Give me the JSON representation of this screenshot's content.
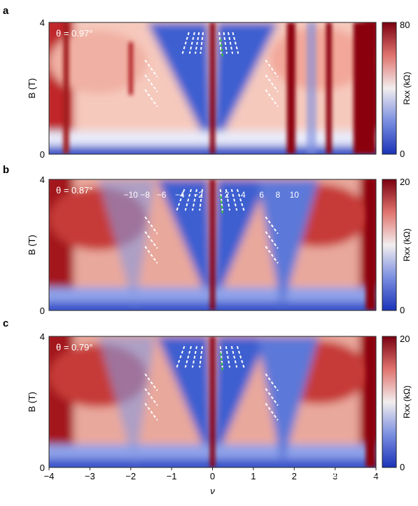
{
  "chart_data": [
    {
      "panel": "a",
      "type": "heatmap",
      "theta_label": "θ = 0.97°",
      "ylabel": "B (T)",
      "y_ticks": [
        "0",
        "4"
      ],
      "ylim": [
        0,
        4
      ],
      "xlim": [
        -4,
        4
      ],
      "colorbar": {
        "label": "Rxx (kΩ)",
        "ticks": [
          "80",
          "0"
        ],
        "range": [
          0,
          80
        ]
      },
      "fan_labels": []
    },
    {
      "panel": "b",
      "type": "heatmap",
      "theta_label": "θ = 0.87°",
      "ylabel": "B (T)",
      "y_ticks": [
        "0",
        "4"
      ],
      "ylim": [
        0,
        4
      ],
      "xlim": [
        -4,
        4
      ],
      "colorbar": {
        "label": "Rxx (kΩ)",
        "ticks": [
          "20",
          "0"
        ],
        "range": [
          0,
          20
        ]
      },
      "fan_labels": [
        "−10",
        "−8",
        "−6",
        "−4",
        "−2",
        "2",
        "4",
        "6",
        "8",
        "10"
      ]
    },
    {
      "panel": "c",
      "type": "heatmap",
      "theta_label": "θ = 0.79°",
      "ylabel": "B (T)",
      "y_ticks": [
        "0",
        "4"
      ],
      "ylim": [
        0,
        4
      ],
      "xlim": [
        -4,
        4
      ],
      "colorbar": {
        "label": "Rxx (kΩ)",
        "ticks": [
          "20",
          "0"
        ],
        "range": [
          0,
          20
        ]
      },
      "fan_labels": [],
      "xlabel": "ν",
      "x_ticks": [
        "−4",
        "−3",
        "−2",
        "−1",
        "0",
        "1",
        "2",
        "3",
        "4"
      ]
    }
  ],
  "colors": {
    "high": "#8a0010",
    "mid": "#f4efef",
    "low": "#2a4bc4",
    "fan_white": "#ffffff",
    "fan_green": "#35c935"
  },
  "watermark": "知乎 @乐乐波色子"
}
